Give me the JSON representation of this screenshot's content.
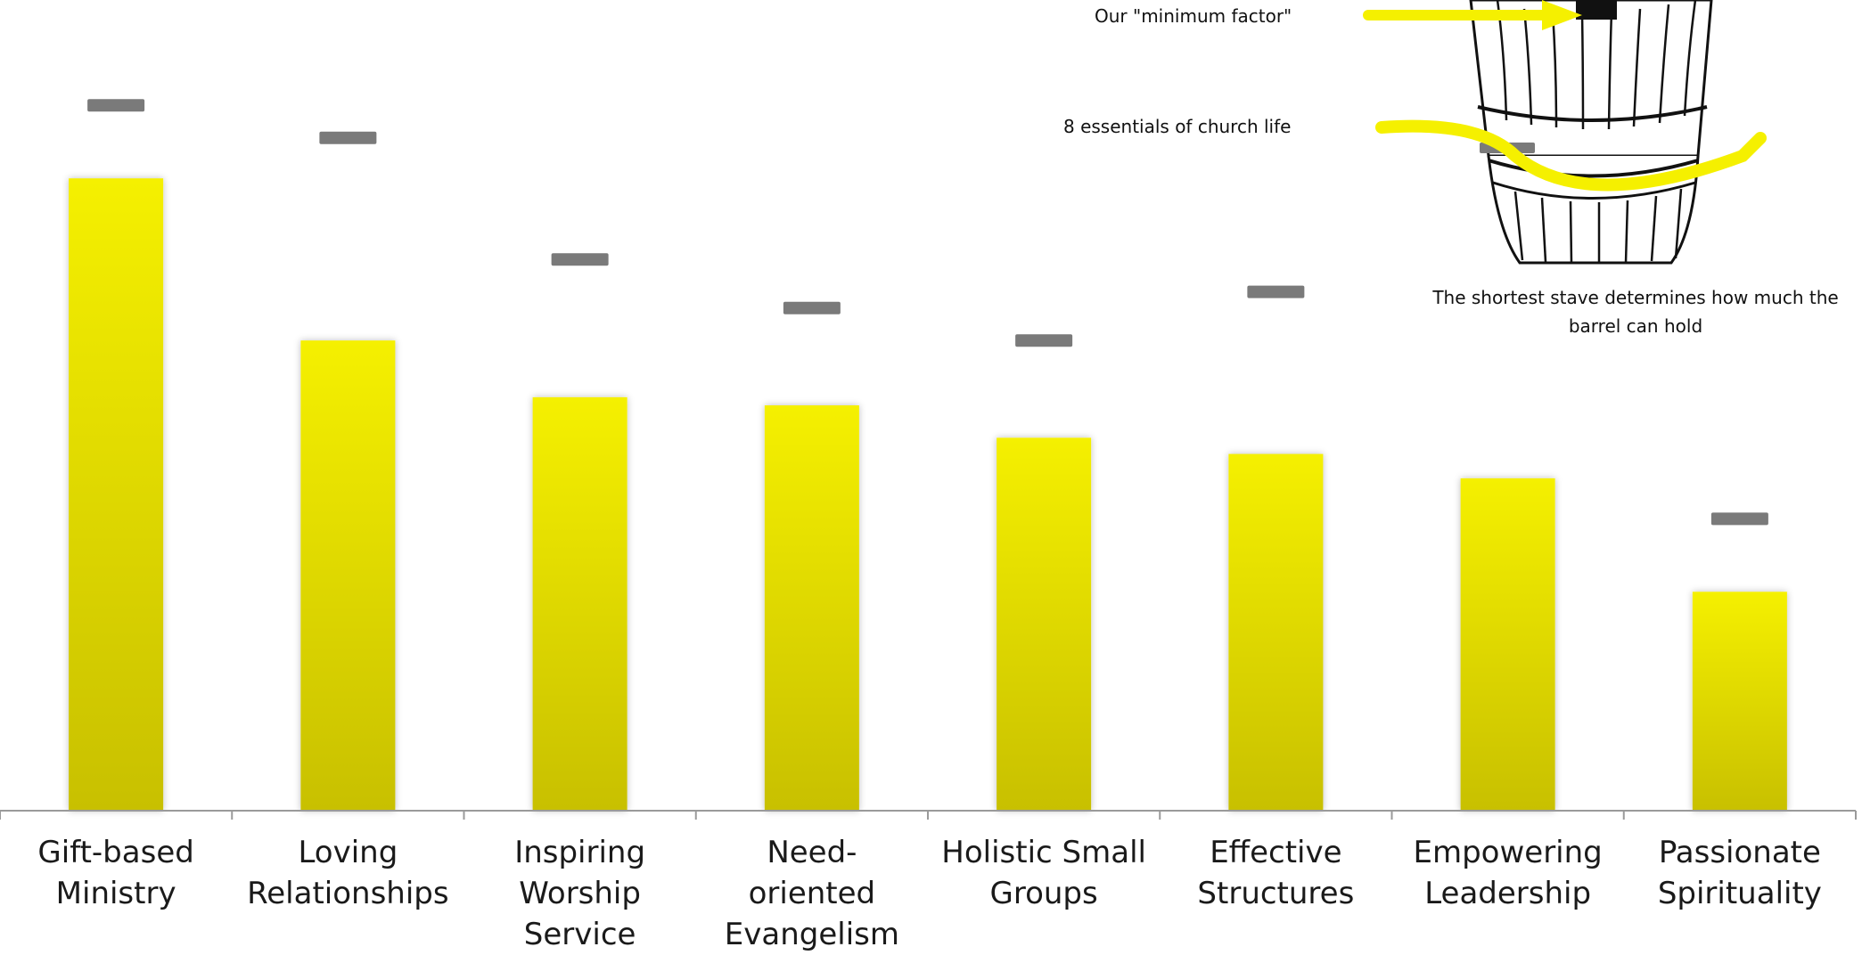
{
  "chart_data": {
    "type": "bar",
    "categories": [
      "Gift-based Ministry",
      "Loving Relationships",
      "Inspiring Worship Service",
      "Need-oriented Evangelism",
      "Holistic Small Groups",
      "Effective Structures",
      "Empowering Leadership",
      "Passionate Spirituality"
    ],
    "category_lines": [
      [
        "Gift-based",
        "Ministry"
      ],
      [
        "Loving",
        "Relationships"
      ],
      [
        "Inspiring",
        "Worship",
        "Service"
      ],
      [
        "Need-oriented",
        "Evangelism"
      ],
      [
        "Holistic Small",
        "Groups"
      ],
      [
        "Effective",
        "Structures"
      ],
      [
        "Empowering",
        "Leadership"
      ],
      [
        "Passionate",
        "Spirituality"
      ]
    ],
    "values": [
      78,
      58,
      51,
      50,
      46,
      44,
      41,
      27
    ],
    "markers": [
      87,
      83,
      68,
      62,
      58,
      64,
      null,
      36
    ],
    "ylim": [
      0,
      100
    ],
    "grid": false,
    "bar_color": "#f5f000",
    "bar_color_bottom": "#c8c000",
    "marker_color": "#7a7a7a"
  },
  "annotations": {
    "minimum_factor": "Our \"minimum factor\"",
    "essentials": "8 essentials of church life",
    "caption": "The shortest stave determines how much the barrel can hold"
  },
  "colors": {
    "arrow": "#f5f000",
    "axis": "#9a9a9a"
  },
  "icons": {
    "barrel": "barrel-illustration"
  }
}
